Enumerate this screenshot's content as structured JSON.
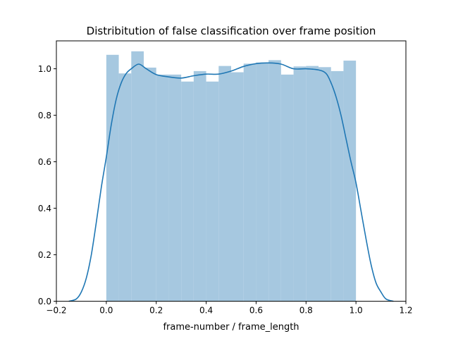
{
  "chart_data": {
    "type": "bar",
    "title": "Distribitution of false classification over frame position",
    "xlabel": "frame-number / frame_length",
    "ylabel": "",
    "xlim": [
      -0.2,
      1.2
    ],
    "ylim": [
      0.0,
      1.12
    ],
    "xticks": [
      "−0.2",
      "0.0",
      "0.2",
      "0.4",
      "0.6",
      "0.8",
      "1.0",
      "1.2"
    ],
    "xtick_values": [
      -0.2,
      0.0,
      0.2,
      0.4,
      0.6,
      0.8,
      1.0,
      1.2
    ],
    "yticks": [
      "0.0",
      "0.2",
      "0.4",
      "0.6",
      "0.8",
      "1.0"
    ],
    "ytick_values": [
      0.0,
      0.2,
      0.4,
      0.6,
      0.8,
      1.0
    ],
    "grid": false,
    "bar_color": "#a6c8e0",
    "line_color": "#1f77b4",
    "histogram": {
      "bin_edges": [
        0.0,
        0.05,
        0.1,
        0.15,
        0.2,
        0.25,
        0.3,
        0.35,
        0.4,
        0.45,
        0.5,
        0.55,
        0.6,
        0.65,
        0.7,
        0.75,
        0.8,
        0.85,
        0.9,
        0.95,
        1.0
      ],
      "values": [
        1.06,
        0.98,
        1.075,
        1.005,
        0.975,
        0.975,
        0.945,
        0.99,
        0.945,
        1.012,
        0.985,
        1.022,
        1.027,
        1.037,
        0.975,
        1.01,
        1.012,
        1.007,
        0.99,
        1.035
      ]
    },
    "kde": {
      "x": [
        -0.15,
        -0.12,
        -0.1,
        -0.08,
        -0.06,
        -0.04,
        -0.02,
        0.0,
        0.02,
        0.04,
        0.06,
        0.08,
        0.1,
        0.13,
        0.16,
        0.2,
        0.25,
        0.3,
        0.35,
        0.4,
        0.45,
        0.5,
        0.55,
        0.6,
        0.65,
        0.7,
        0.75,
        0.8,
        0.85,
        0.88,
        0.9,
        0.92,
        0.94,
        0.96,
        0.98,
        1.0,
        1.02,
        1.04,
        1.06,
        1.08,
        1.1,
        1.12,
        1.15
      ],
      "y": [
        0.0,
        0.01,
        0.04,
        0.1,
        0.2,
        0.34,
        0.49,
        0.62,
        0.76,
        0.87,
        0.94,
        0.98,
        1.0,
        1.02,
        1.0,
        0.975,
        0.965,
        0.96,
        0.97,
        0.977,
        0.977,
        0.99,
        1.01,
        1.022,
        1.025,
        1.02,
        1.0,
        1.0,
        0.995,
        0.98,
        0.94,
        0.88,
        0.8,
        0.7,
        0.6,
        0.51,
        0.39,
        0.27,
        0.16,
        0.08,
        0.04,
        0.01,
        0.0
      ]
    }
  }
}
